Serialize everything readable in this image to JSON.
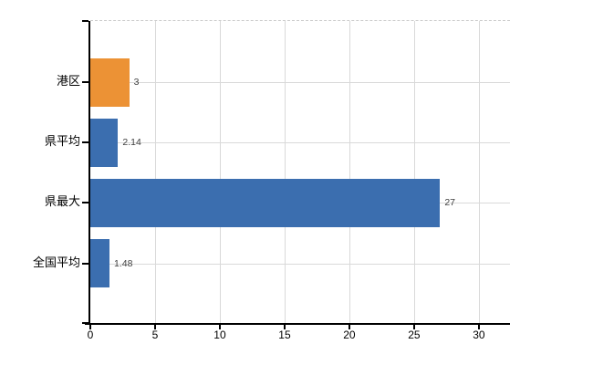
{
  "chart_data": {
    "type": "bar",
    "orientation": "horizontal",
    "title": "",
    "xlabel": "",
    "ylabel": "",
    "categories": [
      "港区",
      "県平均",
      "県最大",
      "全国平均"
    ],
    "values": [
      3,
      2.14,
      27,
      1.48
    ],
    "value_labels": [
      "3",
      "2.14",
      "27",
      "1.48"
    ],
    "bar_colors": [
      "#EC9235",
      "#3B6EAF",
      "#3B6EAF",
      "#3B6EAF"
    ],
    "x_ticks": [
      "0",
      "5",
      "10",
      "15",
      "20",
      "25",
      "30"
    ],
    "x_tick_values": [
      0,
      5,
      10,
      15,
      20,
      25,
      30
    ],
    "xlim": [
      0,
      32.4
    ],
    "grid": true,
    "legend": false,
    "colors": {
      "bar_default": "#3B6EAF",
      "bar_highlight": "#EC9235",
      "gridline": "#D9D9D9",
      "plot_top_border": "#CCCCCC",
      "axis": "#000000",
      "tick_label": "#000000",
      "value_label": "#3F3F3F",
      "background": "#FFFFFF"
    }
  }
}
